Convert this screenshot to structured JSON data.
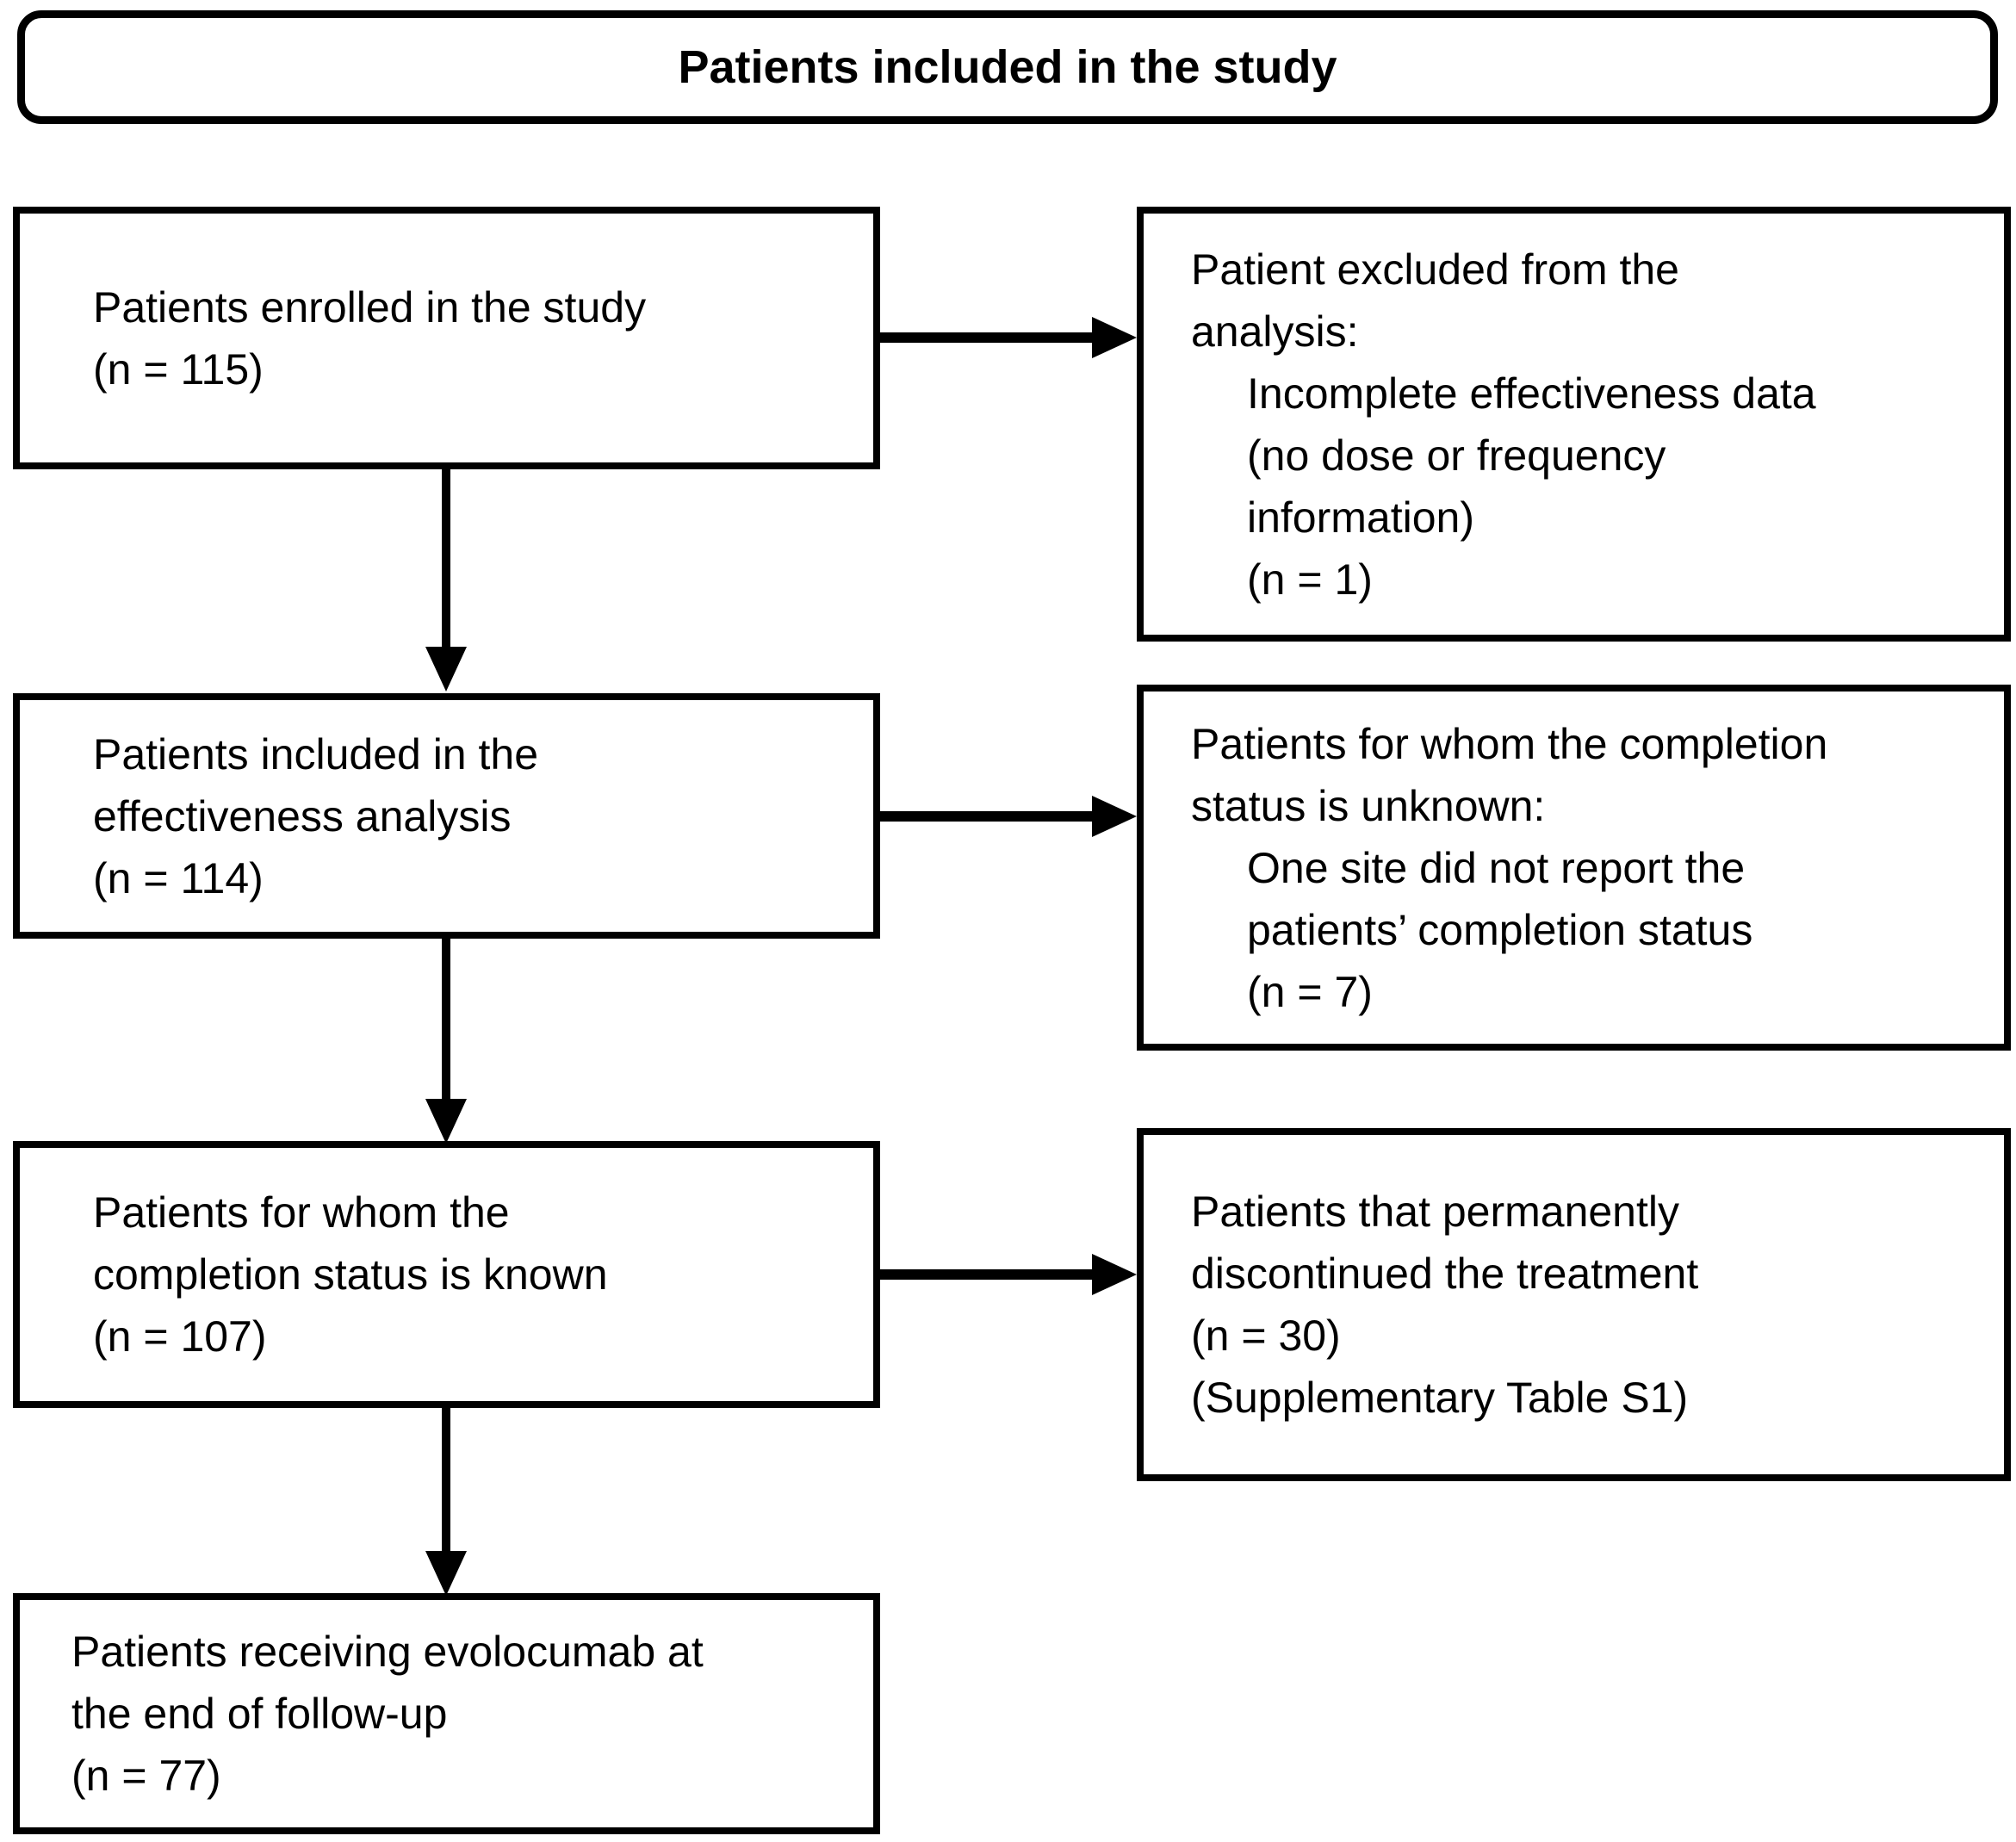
{
  "title": "Patients included in the study",
  "main_boxes": [
    {
      "lines": [
        "Patients enrolled in the study",
        "(n = 115)"
      ]
    },
    {
      "lines": [
        "Patients included in the",
        "effectiveness analysis",
        "(n = 114)"
      ]
    },
    {
      "lines": [
        "Patients for whom the",
        "completion status is known",
        "(n = 107)"
      ]
    },
    {
      "lines": [
        "Patients receiving evolocumab at",
        "the end of follow-up",
        "(n = 77)"
      ]
    }
  ],
  "side_boxes": [
    {
      "lines": [
        "Patient excluded from the",
        "analysis:",
        "Incomplete effectiveness data",
        "(no dose or frequency",
        "information)",
        "(n = 1)"
      ]
    },
    {
      "lines": [
        "Patients for whom the completion",
        "status is unknown:",
        "One site did not report the",
        "patients’ completion status",
        "(n = 7)"
      ]
    },
    {
      "lines": [
        "Patients that permanently",
        "discontinued the treatment",
        "(n = 30)",
        "(Supplementary Table S1)"
      ]
    }
  ],
  "colors": {
    "ink": "#000000",
    "paper": "#ffffff"
  }
}
